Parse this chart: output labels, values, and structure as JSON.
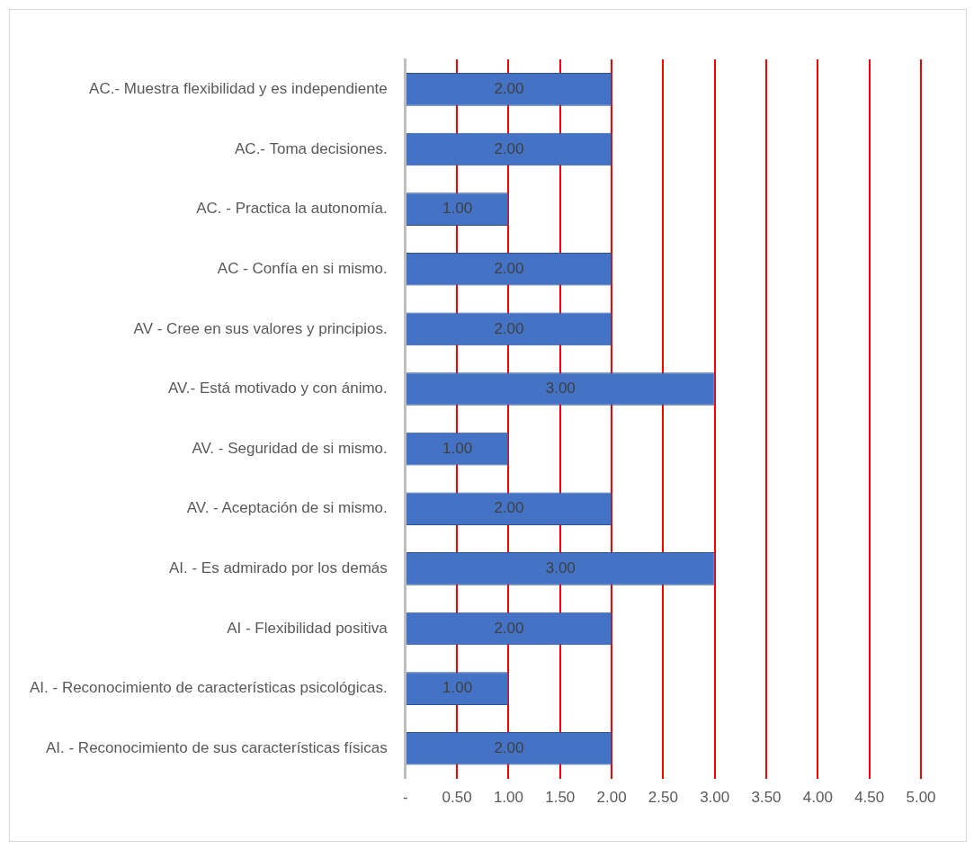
{
  "chart_data": {
    "type": "bar",
    "orientation": "horizontal",
    "categories": [
      "AC.- Muestra flexibilidad y es independiente",
      "AC.- Toma decisiones.",
      "AC. - Practica la autonomía.",
      "AC - Confía en si mismo.",
      "AV - Cree en sus valores y principios.",
      "AV.- Está motivado y con ánimo.",
      "AV. - Seguridad de si mismo.",
      "AV. - Aceptación de si mismo.",
      "AI. - Es admirado por los demás",
      "AI - Flexibilidad positiva",
      "AI. - Reconocimiento de características psicológicas.",
      "AI. - Reconocimiento de sus características físicas"
    ],
    "values": [
      2,
      2,
      1,
      2,
      2,
      3,
      1,
      2,
      3,
      2,
      1,
      2
    ],
    "value_labels": [
      "2.00",
      "2.00",
      "1.00",
      "2.00",
      "2.00",
      "3.00",
      "1.00",
      "2.00",
      "3.00",
      "2.00",
      "1.00",
      "2.00"
    ],
    "color": "#4472c4",
    "xlim": [
      0,
      5
    ],
    "xticks": [
      {
        "value": 0,
        "label": "-"
      },
      {
        "value": 0.5,
        "label": "0.50"
      },
      {
        "value": 1,
        "label": "1.00"
      },
      {
        "value": 1.5,
        "label": "1.50"
      },
      {
        "value": 2,
        "label": "2.00"
      },
      {
        "value": 2.5,
        "label": "2.50"
      },
      {
        "value": 3,
        "label": "3.00"
      },
      {
        "value": 3.5,
        "label": "3.50"
      },
      {
        "value": 4,
        "label": "4.00"
      },
      {
        "value": 4.5,
        "label": "4.50"
      },
      {
        "value": 5,
        "label": "5.00"
      }
    ],
    "grid": "x",
    "legend": false
  }
}
